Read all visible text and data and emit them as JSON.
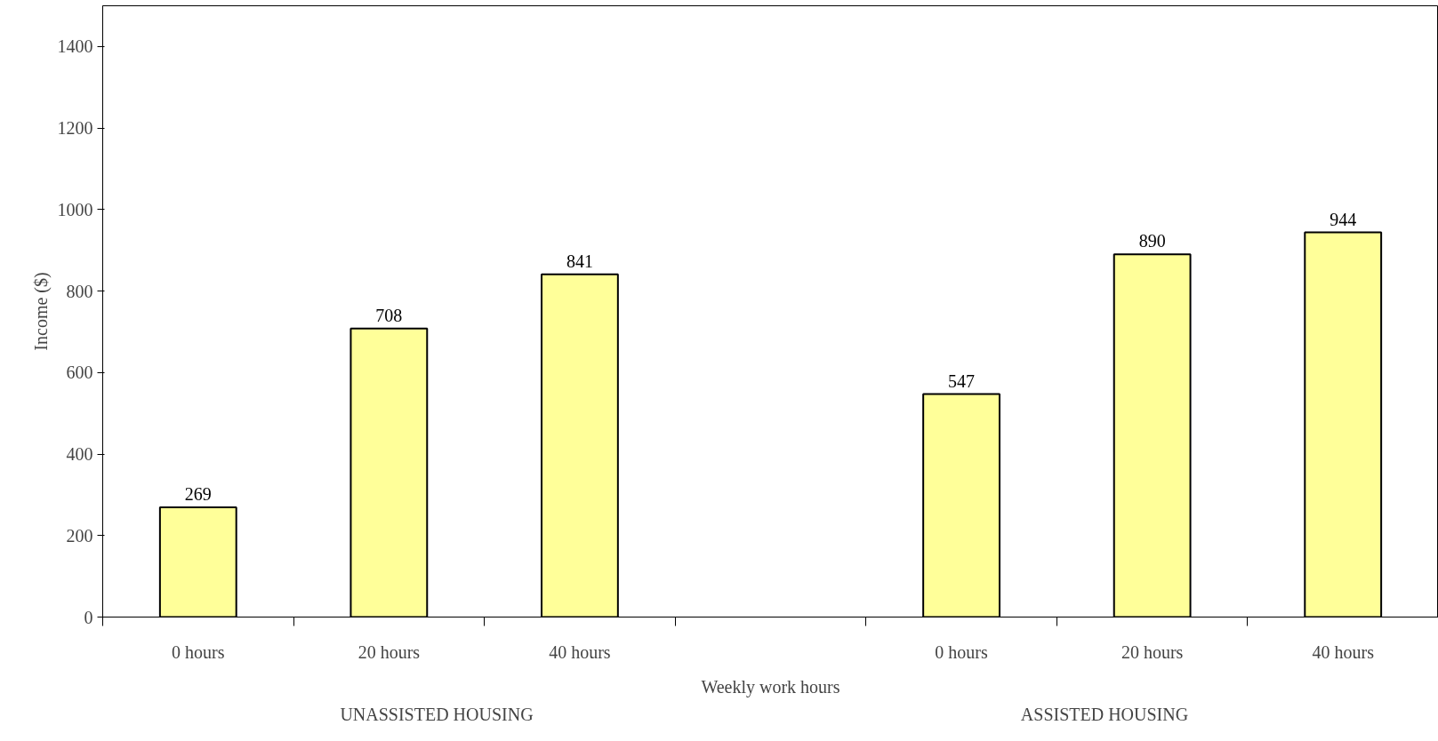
{
  "chart_data": {
    "type": "bar",
    "xlabel": "Weekly work hours",
    "ylabel": "Income ($)",
    "categories": [
      "0 hours",
      "20 hours",
      "40 hours",
      null,
      "0 hours",
      "20 hours",
      "40 hours"
    ],
    "values": [
      269,
      708,
      841,
      null,
      547,
      890,
      944
    ],
    "color": "#ffff99",
    "data_labels": true,
    "ylim": [
      0,
      1500
    ],
    "yticks": [
      0,
      200,
      400,
      600,
      800,
      1000,
      1200,
      1400
    ],
    "grid": false,
    "annotations": [
      "UNASSISTED HOUSING",
      "ASSISTED HOUSING"
    ]
  }
}
